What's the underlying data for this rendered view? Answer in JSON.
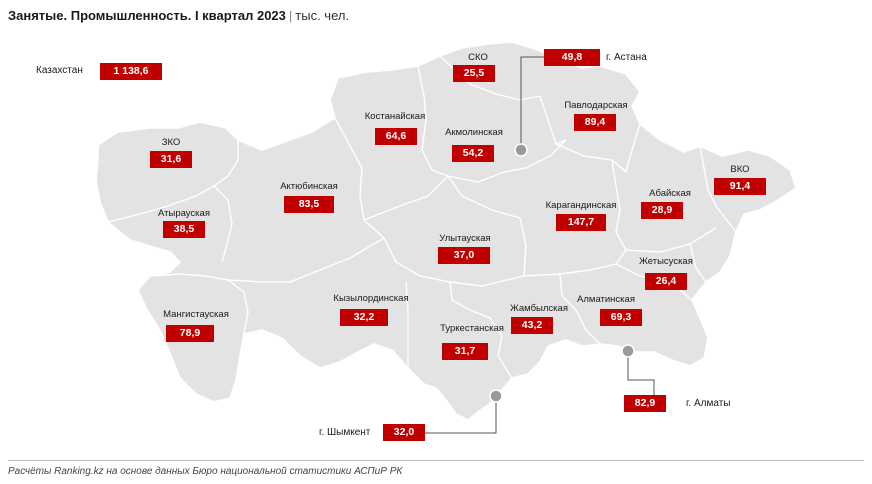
{
  "title": {
    "main": "Занятые. Промышленность. I квартал 2023",
    "separator": "|",
    "unit": "тыс. чел."
  },
  "total": {
    "label": "Казахстан",
    "value": "1 138,6"
  },
  "regions": {
    "sko": {
      "label": "СКО",
      "value": "25,5"
    },
    "astana": {
      "label": "г. Астана",
      "value": "49,8"
    },
    "pavlodar": {
      "label": "Павлодарская",
      "value": "89,4"
    },
    "kostanay": {
      "label": "Костанайская",
      "value": "64,6"
    },
    "akmola": {
      "label": "Акмолинская",
      "value": "54,2"
    },
    "zko": {
      "label": "ЗКО",
      "value": "31,6"
    },
    "aktobe": {
      "label": "Актюбинская",
      "value": "83,5"
    },
    "vko": {
      "label": "ВКО",
      "value": "91,4"
    },
    "abai": {
      "label": "Абайская",
      "value": "28,9"
    },
    "karaganda": {
      "label": "Карагандинская",
      "value": "147,7"
    },
    "atyrau": {
      "label": "Атырауская",
      "value": "38,5"
    },
    "ulytau": {
      "label": "Улытауская",
      "value": "37,0"
    },
    "zhetysu": {
      "label": "Жетысуская",
      "value": "26,4"
    },
    "mangystau": {
      "label": "Мангистауская",
      "value": "78,9"
    },
    "kyzylorda": {
      "label": "Кызылординская",
      "value": "32,2"
    },
    "zhambyl": {
      "label": "Жамбылская",
      "value": "43,2"
    },
    "almaty_obl": {
      "label": "Алматинская",
      "value": "69,3"
    },
    "turkestan": {
      "label": "Туркестанская",
      "value": "31,7"
    },
    "almaty_city": {
      "label": "г. Алматы",
      "value": "82,9"
    },
    "shymkent": {
      "label": "г. Шымкент",
      "value": "32,0"
    }
  },
  "colors": {
    "value_box": "#c00000",
    "map_fill": "#e3e3e3",
    "region_border": "#ffffff"
  },
  "source": "Расчёты Ranking.kz на основе данных Бюро национальной статистики АСПиР РК"
}
